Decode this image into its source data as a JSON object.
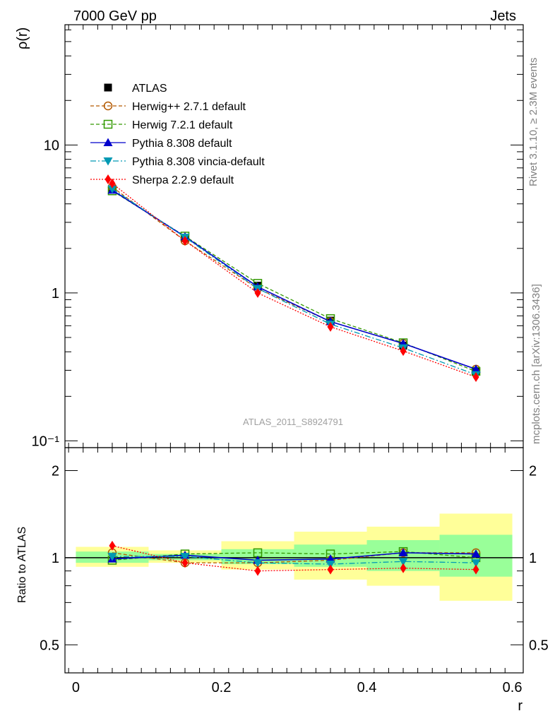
{
  "header": {
    "left": "7000 GeV pp",
    "right": "Jets"
  },
  "side_labels": {
    "rivet": "Rivet 3.1.10, ≥ 2.3M events",
    "mcplots": "mcplots.cern.ch [arXiv:1306.3436]"
  },
  "watermark": "ATLAS_2011_S8924791",
  "legend": [
    {
      "label": "ATLAS",
      "color": "#000000",
      "marker": "filled-square",
      "line": "none"
    },
    {
      "label": "Herwig++ 2.7.1 default",
      "color": "#b35900",
      "marker": "open-circle",
      "line": "dashed"
    },
    {
      "label": "Herwig 7.2.1 default",
      "color": "#339900",
      "marker": "open-square",
      "line": "dashed"
    },
    {
      "label": "Pythia 8.308 default",
      "color": "#0000cc",
      "marker": "filled-triangle-up",
      "line": "solid"
    },
    {
      "label": "Pythia 8.308 vincia-default",
      "color": "#0099b3",
      "marker": "filled-triangle-down",
      "line": "dash-dot"
    },
    {
      "label": "Sherpa 2.2.9 default",
      "color": "#ff0000",
      "marker": "filled-diamond",
      "line": "dotted"
    }
  ],
  "chart_data": {
    "type": "line",
    "title": "7000 GeV pp Jets",
    "x": [
      0.05,
      0.15,
      0.25,
      0.35,
      0.45,
      0.55
    ],
    "x_edges": [
      0.0,
      0.1,
      0.2,
      0.3,
      0.4,
      0.5,
      0.6
    ],
    "xlabel": "r",
    "xlim": [
      -0.015,
      0.615
    ],
    "xticks": [
      {
        "value": 0,
        "label": "0"
      },
      {
        "value": 0.2,
        "label": "0.2"
      },
      {
        "value": 0.4,
        "label": "0.4"
      },
      {
        "value": 0.6,
        "label": "0.6"
      }
    ],
    "main": {
      "ylabel": "ρ(r)",
      "yscale": "log",
      "ylim": [
        0.09,
        65
      ],
      "yticks": [
        {
          "value": 10,
          "label": "10"
        },
        {
          "value": 1,
          "label": "1"
        },
        {
          "value": 0.1,
          "label": "10⁻¹"
        }
      ],
      "series": [
        {
          "name": "ATLAS",
          "values": [
            5.0,
            2.35,
            1.12,
            0.65,
            0.44,
            0.295
          ]
        },
        {
          "name": "Herwig++ 2.7.1 default",
          "values": [
            5.2,
            2.25,
            1.07,
            0.64,
            0.455,
            0.305
          ]
        },
        {
          "name": "Herwig 7.2.1 default",
          "values": [
            4.9,
            2.42,
            1.16,
            0.67,
            0.46,
            0.295
          ]
        },
        {
          "name": "Pythia 8.308 default",
          "values": [
            4.95,
            2.4,
            1.1,
            0.64,
            0.455,
            0.305
          ]
        },
        {
          "name": "Pythia 8.308 vincia-default",
          "values": [
            5.05,
            2.38,
            1.07,
            0.615,
            0.425,
            0.28
          ]
        },
        {
          "name": "Sherpa 2.2.9 default",
          "values": [
            5.5,
            2.25,
            1.0,
            0.59,
            0.405,
            0.27
          ]
        }
      ]
    },
    "ratio": {
      "ylabel": "Ratio to ATLAS",
      "ylim": [
        0.4,
        2.4
      ],
      "yticks": [
        {
          "value": 2,
          "label": "2"
        },
        {
          "value": 1,
          "label": "1"
        },
        {
          "value": 0.5,
          "label": "0.5"
        }
      ],
      "band_yellow": [
        [
          0.93,
          1.09
        ],
        [
          0.96,
          1.06
        ],
        [
          0.91,
          1.14
        ],
        [
          0.84,
          1.23
        ],
        [
          0.8,
          1.28
        ],
        [
          0.71,
          1.42
        ]
      ],
      "band_green": [
        [
          0.96,
          1.05
        ],
        [
          0.98,
          1.03
        ],
        [
          0.95,
          1.07
        ],
        [
          0.93,
          1.11
        ],
        [
          0.9,
          1.15
        ],
        [
          0.86,
          1.2
        ]
      ],
      "series": [
        {
          "name": "Herwig++ 2.7.1 default",
          "values": [
            1.04,
            0.96,
            0.96,
            0.98,
            1.04,
            1.04
          ]
        },
        {
          "name": "Herwig 7.2.1 default",
          "values": [
            0.98,
            1.03,
            1.04,
            1.03,
            1.05,
            1.0
          ]
        },
        {
          "name": "Pythia 8.308 default",
          "values": [
            0.99,
            1.02,
            0.98,
            0.99,
            1.04,
            1.03
          ]
        },
        {
          "name": "Pythia 8.308 vincia-default",
          "values": [
            1.01,
            1.01,
            0.96,
            0.95,
            0.97,
            0.96
          ]
        },
        {
          "name": "Sherpa 2.2.9 default",
          "values": [
            1.1,
            0.96,
            0.9,
            0.91,
            0.92,
            0.91
          ]
        }
      ]
    }
  }
}
